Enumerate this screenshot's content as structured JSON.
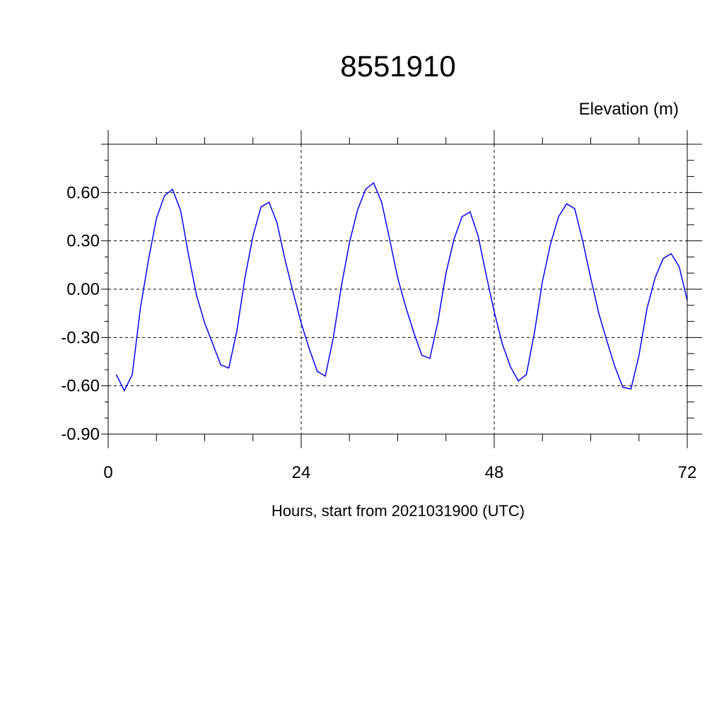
{
  "chart_data": {
    "type": "line",
    "title": "8551910",
    "ylabel": "Elevation (m)",
    "xlabel": "Hours, start from 2021031900 (UTC)",
    "xlim": [
      0,
      72
    ],
    "ylim": [
      -0.9,
      0.9
    ],
    "x_ticks": [
      0,
      24,
      48,
      72
    ],
    "x_tick_labels": [
      "0",
      "24",
      "48",
      "72"
    ],
    "y_ticks": [
      -0.9,
      -0.6,
      -0.3,
      0.0,
      0.3,
      0.6
    ],
    "y_tick_labels": [
      "-0.90",
      "-0.60",
      "-0.30",
      "0.00",
      "0.30",
      "0.60"
    ],
    "grid": "dashed at major ticks",
    "line_color": "#0000ff",
    "x": [
      1,
      2,
      3,
      4,
      5,
      6,
      7,
      8,
      9,
      10,
      11,
      12,
      13,
      14,
      15,
      16,
      17,
      18,
      19,
      20,
      21,
      22,
      23,
      24,
      25,
      26,
      27,
      28,
      29,
      30,
      31,
      32,
      33,
      34,
      35,
      36,
      37,
      38,
      39,
      40,
      41,
      42,
      43,
      44,
      45,
      46,
      47,
      48,
      49,
      50,
      51,
      52,
      53,
      54,
      55,
      56,
      57,
      58,
      59,
      60,
      61,
      62,
      63,
      64,
      65,
      66,
      67,
      68,
      69,
      70,
      71,
      72
    ],
    "values": [
      -0.53,
      -0.63,
      -0.53,
      -0.12,
      0.18,
      0.44,
      0.58,
      0.62,
      0.49,
      0.21,
      -0.04,
      -0.21,
      -0.34,
      -0.47,
      -0.49,
      -0.26,
      0.07,
      0.33,
      0.51,
      0.54,
      0.41,
      0.18,
      -0.02,
      -0.21,
      -0.37,
      -0.51,
      -0.54,
      -0.3,
      0.02,
      0.29,
      0.49,
      0.62,
      0.66,
      0.54,
      0.31,
      0.07,
      -0.11,
      -0.27,
      -0.41,
      -0.43,
      -0.2,
      0.1,
      0.31,
      0.45,
      0.48,
      0.33,
      0.09,
      -0.14,
      -0.34,
      -0.48,
      -0.57,
      -0.53,
      -0.27,
      0.05,
      0.28,
      0.45,
      0.53,
      0.5,
      0.3,
      0.07,
      -0.15,
      -0.32,
      -0.48,
      -0.61,
      -0.62,
      -0.41,
      -0.12,
      0.07,
      0.19,
      0.22,
      0.14,
      -0.07
    ]
  }
}
